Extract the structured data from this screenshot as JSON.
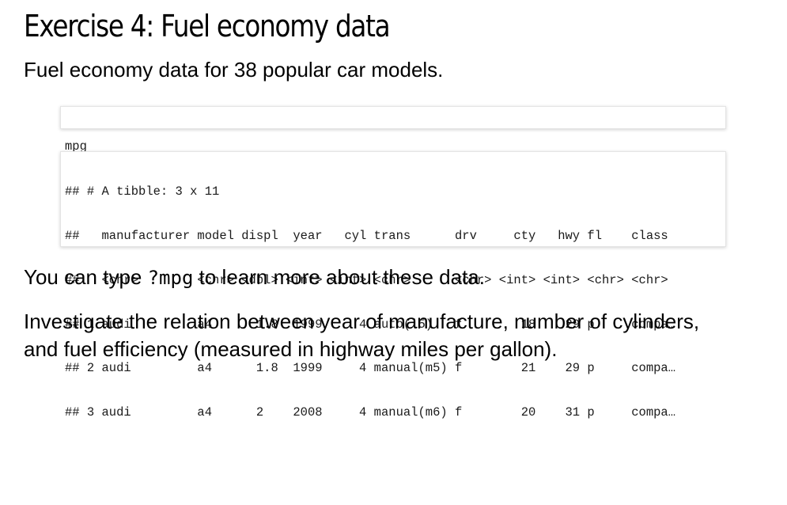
{
  "slide": {
    "title": "Exercise 4: Fuel economy data",
    "intro": "Fuel economy data for 38 popular car models."
  },
  "code_input": "mpg",
  "code_output": [
    "## # A tibble: 3 x 11",
    "##   manufacturer model displ  year   cyl trans      drv     cty   hwy fl    class",
    "##   <chr>        <chr> <dbl> <int> <int> <chr>      <chr> <int> <int> <chr> <chr>",
    "## 1 audi         a4      1.8  1999     4 auto(l5)   f        18    29 p     compa…",
    "## 2 audi         a4      1.8  1999     4 manual(m5) f        21    29 p     compa…",
    "## 3 audi         a4      2    2008     4 manual(m6) f        20    31 p     compa…"
  ],
  "help_text": {
    "before": "You can type ",
    "code": "?mpg",
    "after": " to learn more about these data."
  },
  "task": {
    "line1": "Investigate the relation between year of manufacture, number of cylinders,",
    "line2": "and fuel efficiency (measured in highway miles per gallon)."
  }
}
